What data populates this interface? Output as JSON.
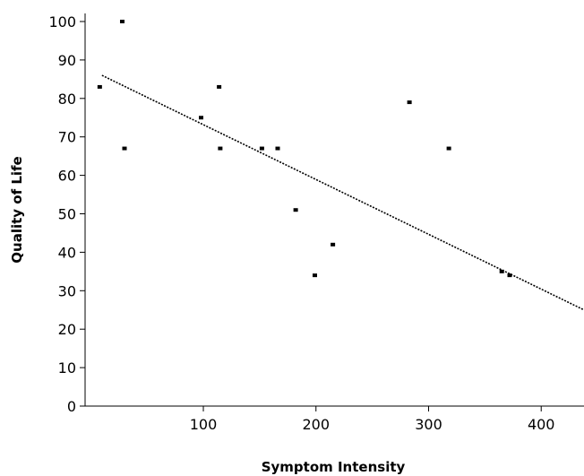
{
  "chart_data": {
    "type": "scatter",
    "xlabel": "Symptom Intensity",
    "ylabel": "Quality of Life",
    "xlim": [
      -5,
      438
    ],
    "ylim": [
      0,
      105
    ],
    "x_ticks": [
      100,
      200,
      300,
      400
    ],
    "y_ticks": [
      0,
      10,
      20,
      30,
      40,
      50,
      60,
      70,
      80,
      90,
      100
    ],
    "grid": false,
    "legend": "none",
    "points": [
      {
        "x": 28,
        "y": 100
      },
      {
        "x": 8,
        "y": 83
      },
      {
        "x": 30,
        "y": 67
      },
      {
        "x": 98,
        "y": 75
      },
      {
        "x": 114,
        "y": 83
      },
      {
        "x": 115,
        "y": 67
      },
      {
        "x": 152,
        "y": 67
      },
      {
        "x": 166,
        "y": 67
      },
      {
        "x": 182,
        "y": 51
      },
      {
        "x": 199,
        "y": 34
      },
      {
        "x": 215,
        "y": 42
      },
      {
        "x": 283,
        "y": 79
      },
      {
        "x": 318,
        "y": 67
      },
      {
        "x": 365,
        "y": 35
      },
      {
        "x": 372,
        "y": 34
      }
    ],
    "trend_line": {
      "x": [
        10,
        438
      ],
      "y": [
        86,
        25
      ]
    },
    "colors": {
      "points": "#000000",
      "trend": "#000000",
      "axis": "#000000"
    }
  }
}
